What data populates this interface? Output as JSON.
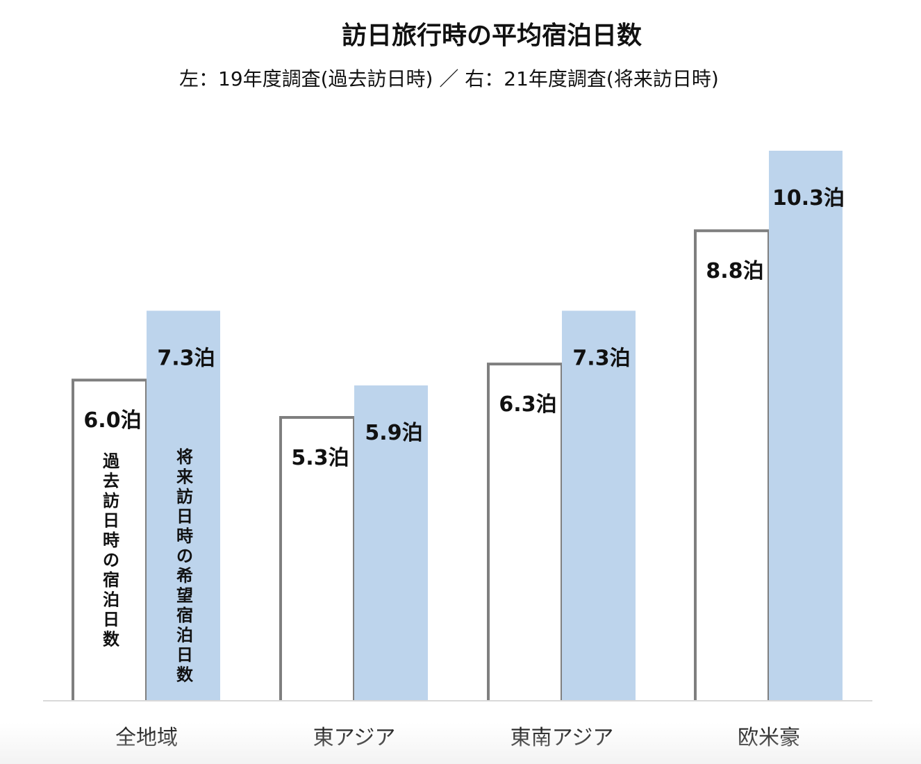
{
  "title": "訪日旅行時の平均宿泊日数",
  "subtitle": "左：19年度調査(過去訪日時) ／ 右：21年度調査(将来訪日時)",
  "colors": {
    "past_fill": "#ffffff",
    "past_stroke": "#7f7f7f",
    "future_fill": "#bdd4ec",
    "baseline": "#d9d9d9",
    "text": "#111111"
  },
  "chart_data": {
    "type": "bar",
    "title": "訪日旅行時の平均宿泊日数",
    "subtitle": "左：19年度調査(過去訪日時) ／ 右：21年度調査(将来訪日時)",
    "categories": [
      "全地域",
      "東アジア",
      "東南アジア",
      "欧米豪"
    ],
    "series": [
      {
        "name": "過去訪日時の宿泊日数",
        "values": [
          6.0,
          5.3,
          6.3,
          8.8
        ],
        "labels": [
          "6.0泊",
          "5.3泊",
          "6.3泊",
          "8.8泊"
        ]
      },
      {
        "name": "将来訪日時の希望宿泊日数",
        "values": [
          7.3,
          5.9,
          7.3,
          10.3
        ],
        "labels": [
          "7.3泊",
          "5.9泊",
          "7.3泊",
          "10.3泊"
        ]
      }
    ],
    "ylim": [
      0,
      11.5
    ],
    "grid": false,
    "legend": "in-bar vertical labels on first category"
  }
}
